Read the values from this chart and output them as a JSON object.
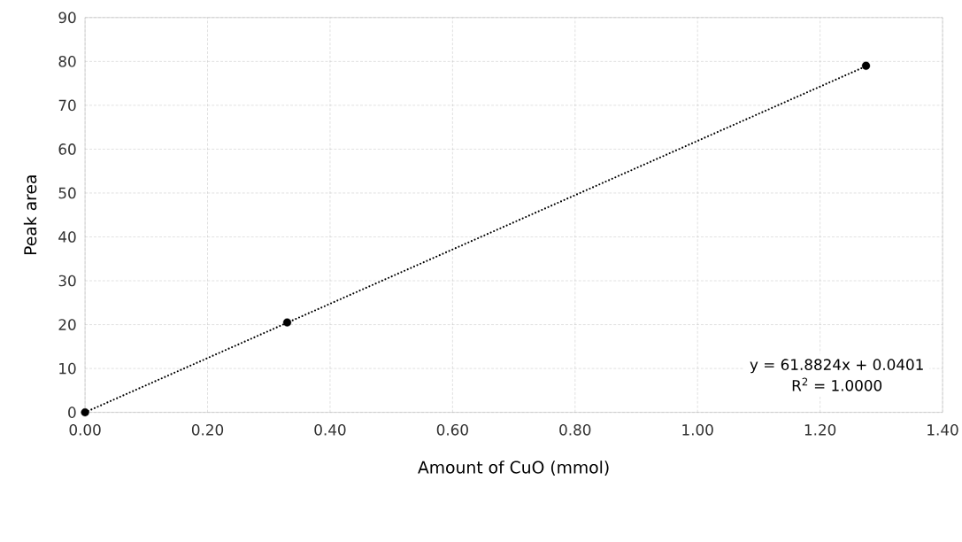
{
  "chart_data": {
    "type": "scatter",
    "xlabel": "Amount of CuO (mmol)",
    "ylabel": "Peak area",
    "series": [
      {
        "color": "#000000",
        "marker": "circle",
        "x": [
          0.0,
          0.33,
          1.275
        ],
        "values": [
          0,
          20.5,
          79
        ]
      },
      {
        "type": "line",
        "color": "#000000",
        "line_style": "dotted",
        "x": [
          0.0,
          1.275
        ],
        "values": [
          0,
          78.9
        ]
      }
    ],
    "annotations": [
      "y = 61.8824x + 0.0401",
      "R$^{2}$ = 1.0000"
    ],
    "xlim": [
      0,
      1.4
    ],
    "ylim": [
      0,
      90
    ],
    "xticks": [
      {
        "value": 0,
        "label": "0.00"
      },
      {
        "value": 0.2,
        "label": "0.20"
      },
      {
        "value": 0.4,
        "label": "0.40"
      },
      {
        "value": 0.6,
        "label": "0.60"
      },
      {
        "value": 0.8,
        "label": "0.80"
      },
      {
        "value": 1.0,
        "label": "1.00"
      },
      {
        "value": 1.2,
        "label": "1.20"
      },
      {
        "value": 1.4,
        "label": "1.40"
      }
    ],
    "yticks": [
      0,
      10,
      20,
      30,
      40,
      50,
      60,
      70,
      80,
      90
    ],
    "grid": true
  }
}
